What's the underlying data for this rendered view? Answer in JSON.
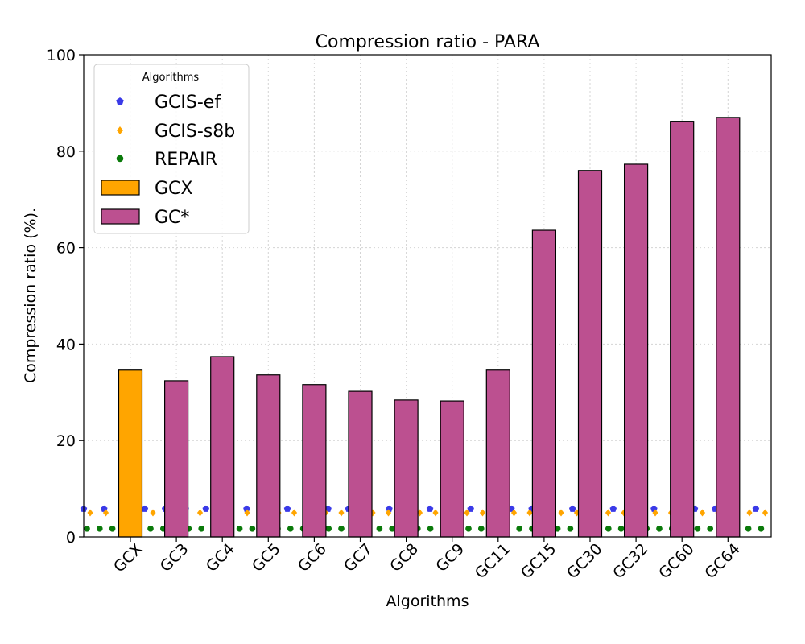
{
  "chart_data": {
    "type": "bar",
    "title": "Compression ratio -  PARA",
    "xlabel": "Algorithms",
    "ylabel": "Compression ratio (%).",
    "ylim": [
      0,
      100
    ],
    "yticks": [
      0,
      20,
      40,
      60,
      80,
      100
    ],
    "grid": true,
    "categories": [
      "GCX",
      "GC3",
      "GC4",
      "GC5",
      "GC6",
      "GC7",
      "GC8",
      "GC9",
      "GC11",
      "GC15",
      "GC30",
      "GC32",
      "GC60",
      "GC64"
    ],
    "series": [
      {
        "name": "GCX",
        "kind": "bar",
        "color": "#ffa500",
        "values": [
          34.6,
          null,
          null,
          null,
          null,
          null,
          null,
          null,
          null,
          null,
          null,
          null,
          null,
          null
        ]
      },
      {
        "name": "GC*",
        "kind": "bar",
        "color": "#bc5090",
        "values": [
          null,
          32.4,
          37.4,
          33.6,
          31.6,
          30.2,
          28.4,
          28.2,
          34.6,
          63.6,
          76.0,
          77.3,
          86.2,
          87.0
        ]
      },
      {
        "name": "GCIS-ef",
        "kind": "line-marker",
        "marker": "pentagon",
        "color": "#3a3ae8",
        "value": 5.8
      },
      {
        "name": "GCIS-s8b",
        "kind": "line-marker",
        "marker": "diamond",
        "color": "#ffa500",
        "value": 5.0
      },
      {
        "name": "REPAIR",
        "kind": "line-marker",
        "marker": "circle",
        "color": "#0a7a0a",
        "value": 1.7
      }
    ],
    "legend": {
      "title": "Algorithms",
      "placement": "top-left",
      "entries": [
        "GCIS-ef",
        "GCIS-s8b",
        "REPAIR",
        "GCX",
        "GC*"
      ]
    }
  }
}
